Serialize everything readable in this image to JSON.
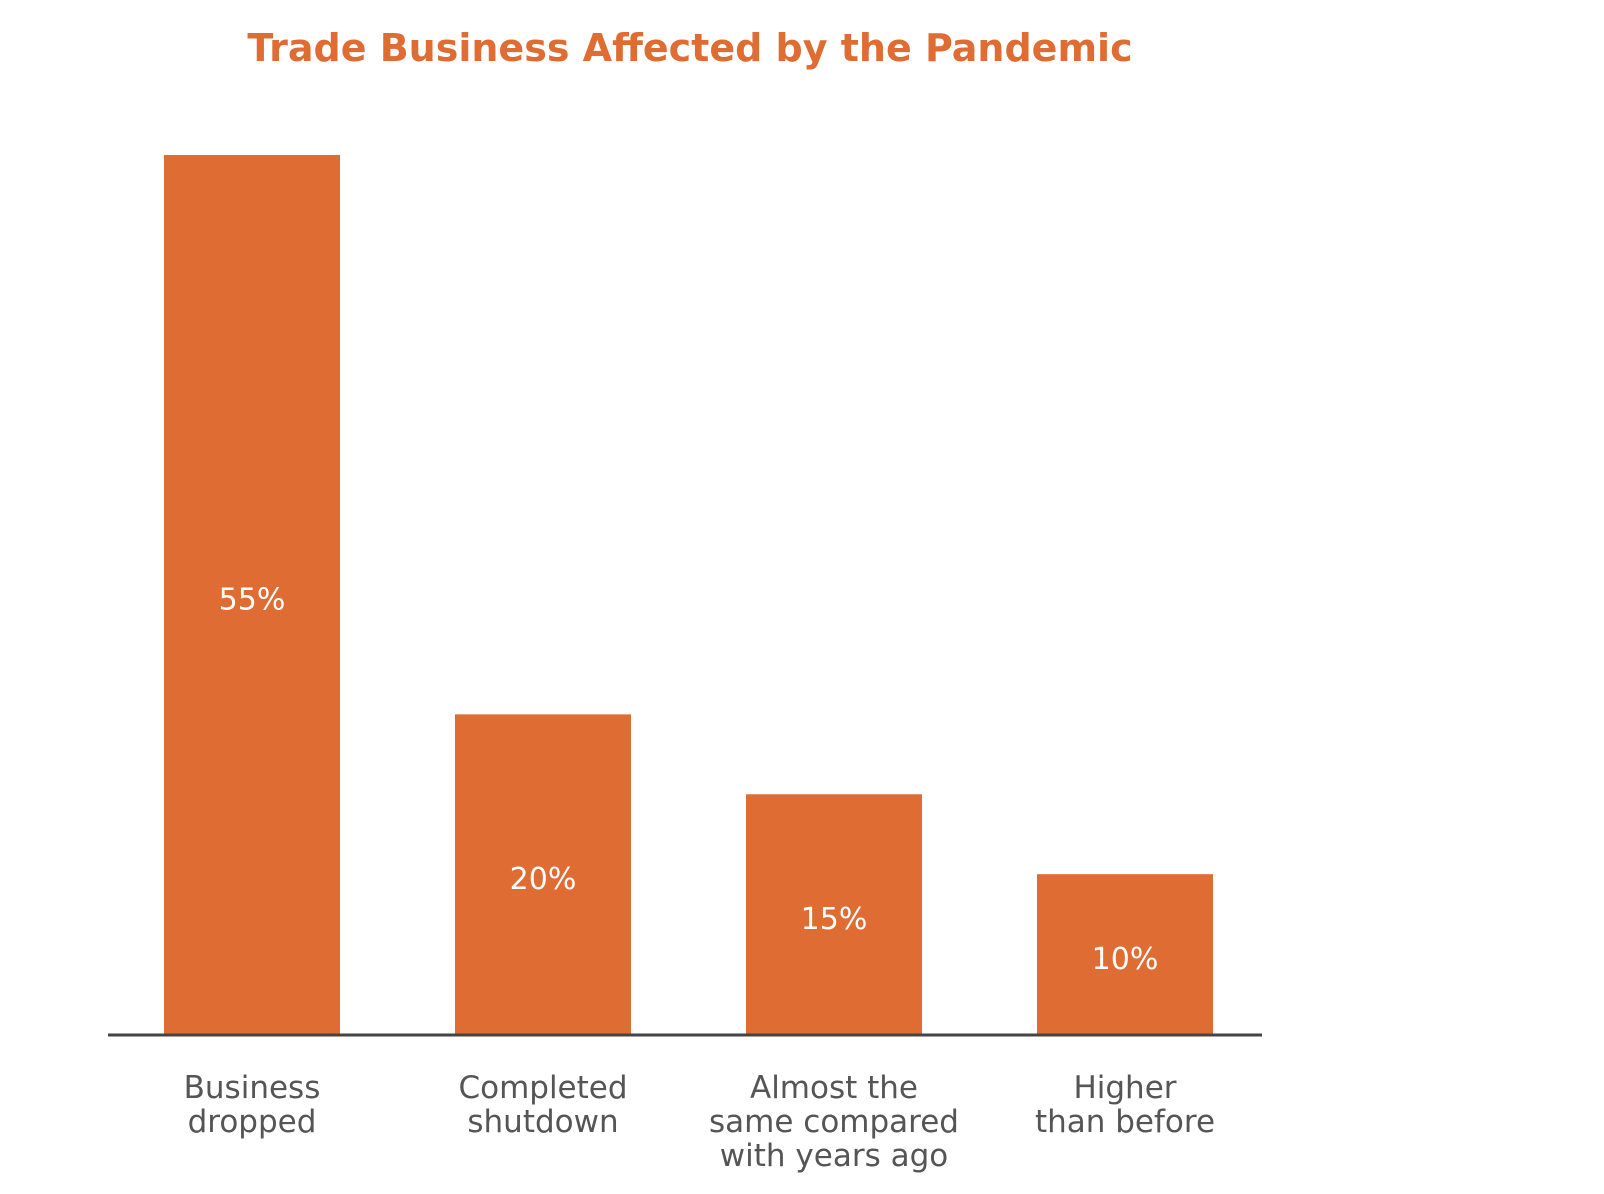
{
  "chart_data": {
    "type": "bar",
    "title": "Trade Business Affected by the Pandemic",
    "categories": [
      [
        "Business",
        "dropped"
      ],
      [
        "Completed",
        "shutdown"
      ],
      [
        "Almost the",
        "same compared",
        "with years ago"
      ],
      [
        "Higher",
        "than before"
      ]
    ],
    "values": [
      55,
      20,
      15,
      10
    ],
    "value_labels": [
      "55%",
      "20%",
      "15%",
      "10%"
    ],
    "ylim": [
      0,
      55
    ],
    "grid": false,
    "bar_color": "#de6c33",
    "label_color": "#555555"
  }
}
